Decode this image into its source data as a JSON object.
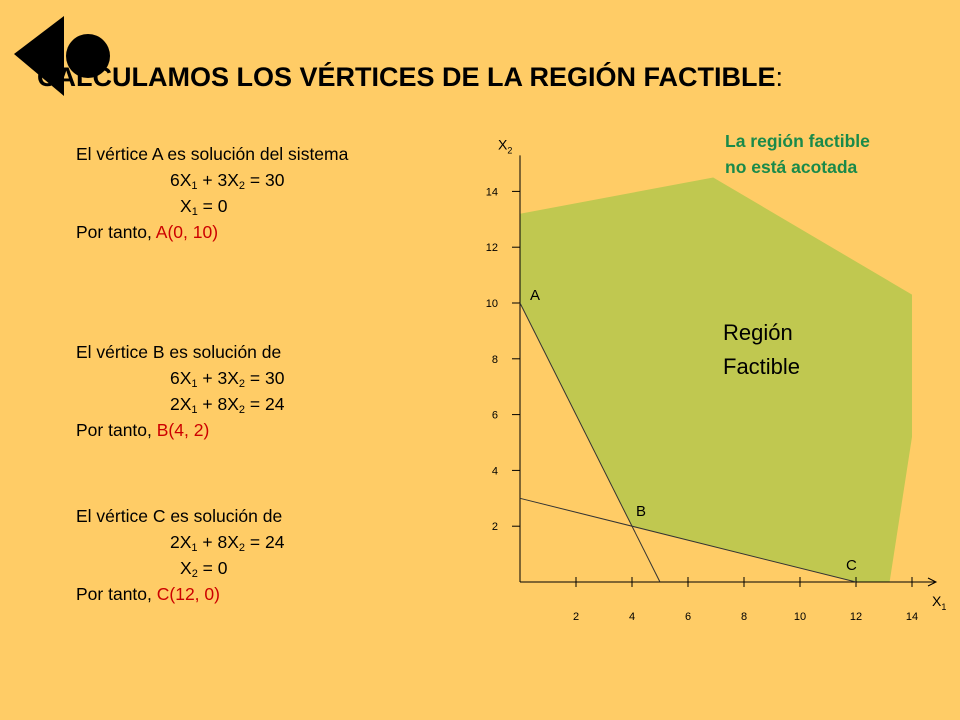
{
  "title": {
    "text": "CALCULAMOS LOS VÉRTICES DE LA REGIÓN FACTIBLE",
    "colon": ":"
  },
  "vertex_a": {
    "intro": "El vértice A es solución del sistema",
    "eq1": {
      "c1": "6X",
      "s1": "1",
      "mid": " + 3X",
      "s2": "2",
      "rhs": " = 30"
    },
    "eq2": {
      "c1": "X",
      "s1": "1",
      "rhs": " = 0"
    },
    "conclusion": "Por tanto, ",
    "result": "A(0, 10)"
  },
  "vertex_b": {
    "intro": "El vértice B es solución de",
    "eq1": {
      "c1": "6X",
      "s1": "1",
      "mid": " + 3X",
      "s2": "2",
      "rhs": " = 30"
    },
    "eq2": {
      "c1": "2X",
      "s1": "1",
      "mid": " + 8X",
      "s2": "2",
      "rhs": " = 24"
    },
    "conclusion": "Por tanto, ",
    "result": "B(4, 2)"
  },
  "vertex_c": {
    "intro": "El vértice C es solución de",
    "eq1": {
      "c1": "2X",
      "s1": "1",
      "mid": " + 8X",
      "s2": "2",
      "rhs": " = 24"
    },
    "eq2": {
      "c1": "X",
      "s1": "2",
      "rhs": " = 0"
    },
    "conclusion": "Por tanto, ",
    "result": "C(12, 0)"
  },
  "note": {
    "line1": "La región factible",
    "line2": "no está acotada"
  },
  "colors": {
    "background": "#FFCC66",
    "region": "#C0C850",
    "note": "#1A8A4A",
    "result": "#CC0000"
  },
  "chart_data": {
    "type": "line",
    "x_axis": {
      "label": "X",
      "sub": "1",
      "ticks": [
        2,
        4,
        6,
        8,
        10,
        12,
        14
      ],
      "range": [
        0,
        14
      ]
    },
    "y_axis": {
      "label": "X",
      "sub": "2",
      "ticks": [
        2,
        4,
        6,
        8,
        10,
        12,
        14
      ],
      "range": [
        0,
        14
      ]
    },
    "lines": [
      {
        "equation": "6X1 + 3X2 = 30",
        "points": [
          [
            0,
            10
          ],
          [
            5,
            0
          ]
        ]
      },
      {
        "equation": "2X1 + 8X2 = 24",
        "points": [
          [
            0,
            3
          ],
          [
            12,
            0
          ]
        ]
      }
    ],
    "vertices": [
      {
        "label": "A",
        "x": 0,
        "y": 10
      },
      {
        "label": "B",
        "x": 4,
        "y": 2
      },
      {
        "label": "C",
        "x": 12,
        "y": 0
      }
    ],
    "region": {
      "label_line1": "Región",
      "label_line2": "Factible",
      "boundary": [
        [
          0,
          10
        ],
        [
          4,
          2
        ],
        [
          12,
          0
        ],
        [
          13.2,
          0
        ],
        [
          14,
          5.2
        ],
        [
          14,
          10.3
        ],
        [
          6.9,
          14.5
        ],
        [
          0,
          13.2
        ]
      ]
    }
  }
}
